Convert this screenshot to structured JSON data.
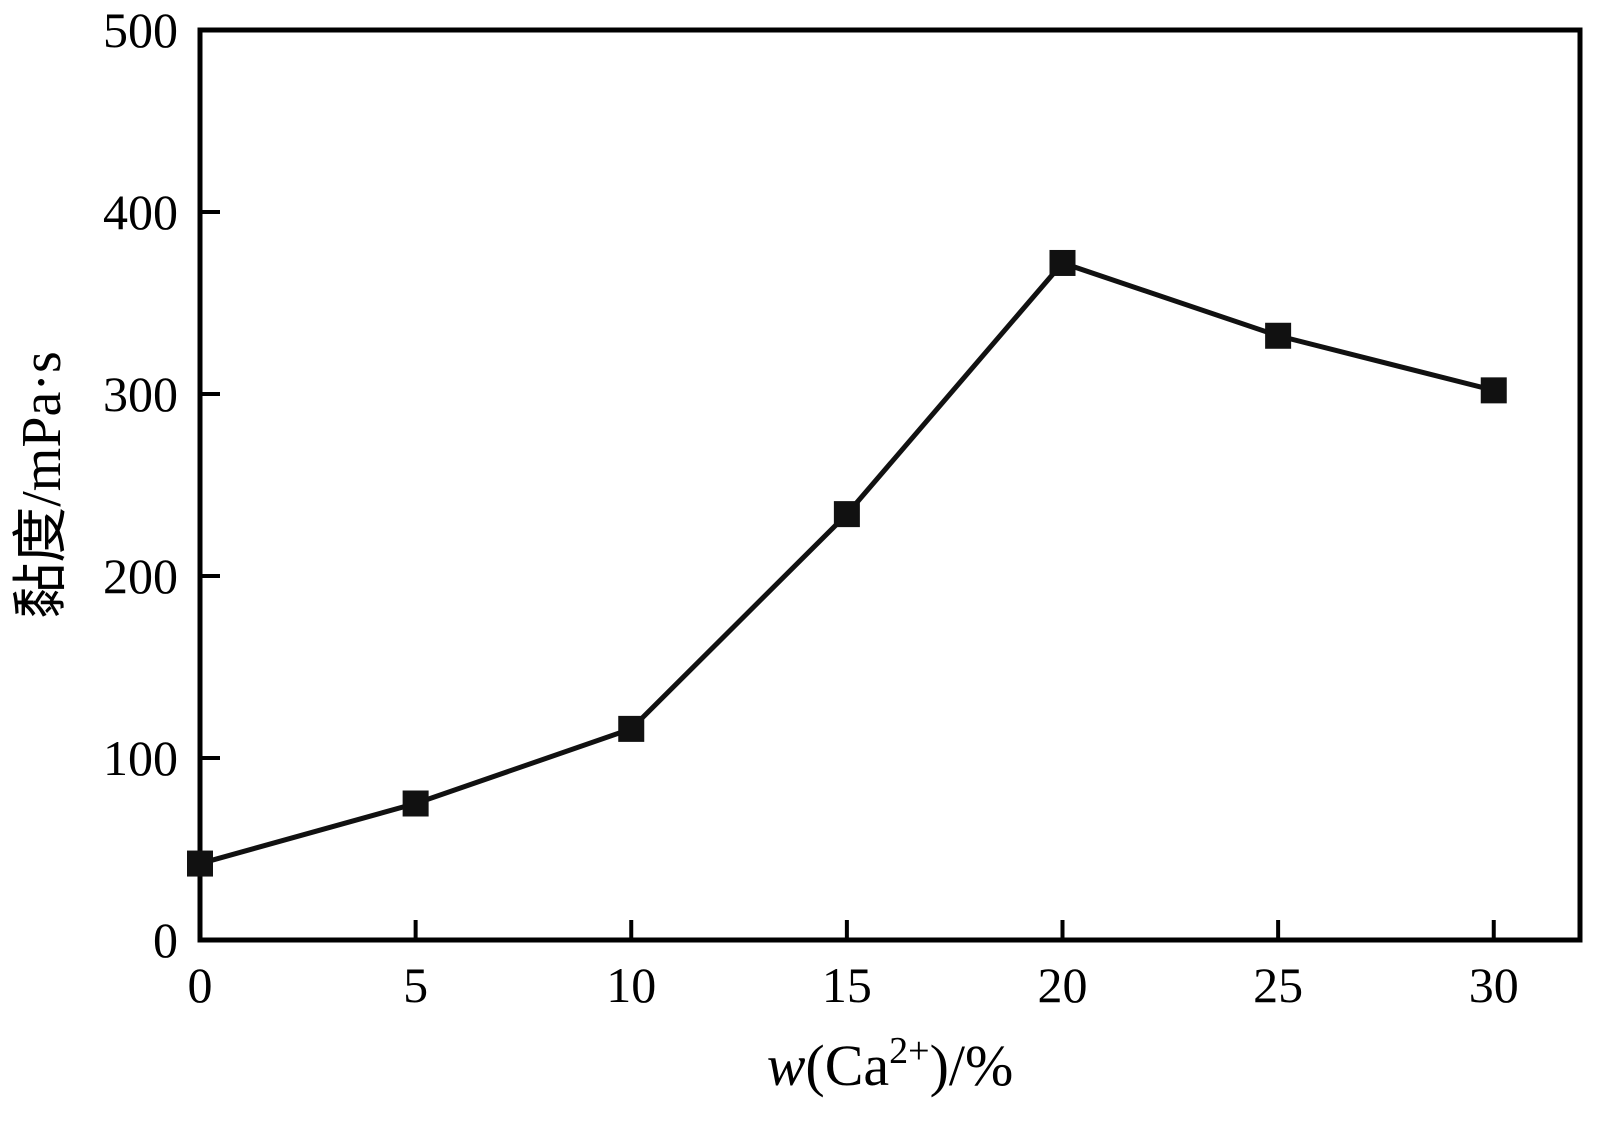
{
  "chart_data": {
    "type": "line",
    "title": "",
    "x": [
      0,
      5,
      10,
      15,
      20,
      25,
      30
    ],
    "series": [
      {
        "name": "viscosity",
        "values": [
          42,
          75,
          116,
          234,
          372,
          332,
          302
        ]
      }
    ],
    "xlabel": "w(Ca2+)/%",
    "xlabel_parts": {
      "italic": "w",
      "pre": "(Ca",
      "sup": "2+",
      "post": ")/%"
    },
    "ylabel": "黏度/mPa·s",
    "xlim": [
      0,
      32
    ],
    "ylim": [
      0,
      500
    ],
    "xticks": [
      0,
      5,
      10,
      15,
      20,
      25,
      30
    ],
    "yticks": [
      0,
      100,
      200,
      300,
      400,
      500
    ],
    "grid": false,
    "legend": null,
    "marker": "square",
    "line_color": "#111111",
    "marker_color": "#111111",
    "axis_color": "#000000"
  }
}
